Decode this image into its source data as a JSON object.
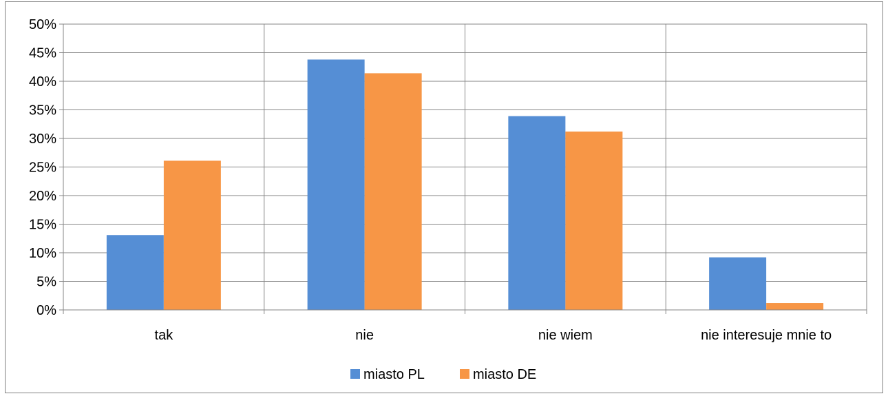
{
  "chart_data": {
    "type": "bar",
    "title": "",
    "xlabel": "",
    "ylabel": "",
    "categories": [
      "tak",
      "nie",
      "nie wiem",
      "nie interesuje mnie to"
    ],
    "series": [
      {
        "name": "miasto PL",
        "color": "#558ed5",
        "values": [
          0.131,
          0.438,
          0.339,
          0.092
        ]
      },
      {
        "name": "miasto DE",
        "color": "#f79646",
        "values": [
          0.261,
          0.414,
          0.312,
          0.012
        ]
      }
    ],
    "ylim": [
      0,
      0.5
    ],
    "yticks": [
      0,
      0.05,
      0.1,
      0.15,
      0.2,
      0.25,
      0.3,
      0.35,
      0.4,
      0.45,
      0.5
    ],
    "ytick_labels": [
      "0%",
      "5%",
      "10%",
      "15%",
      "20%",
      "25%",
      "30%",
      "35%",
      "40%",
      "45%",
      "50%"
    ],
    "grid": true,
    "legend_position": "bottom"
  }
}
